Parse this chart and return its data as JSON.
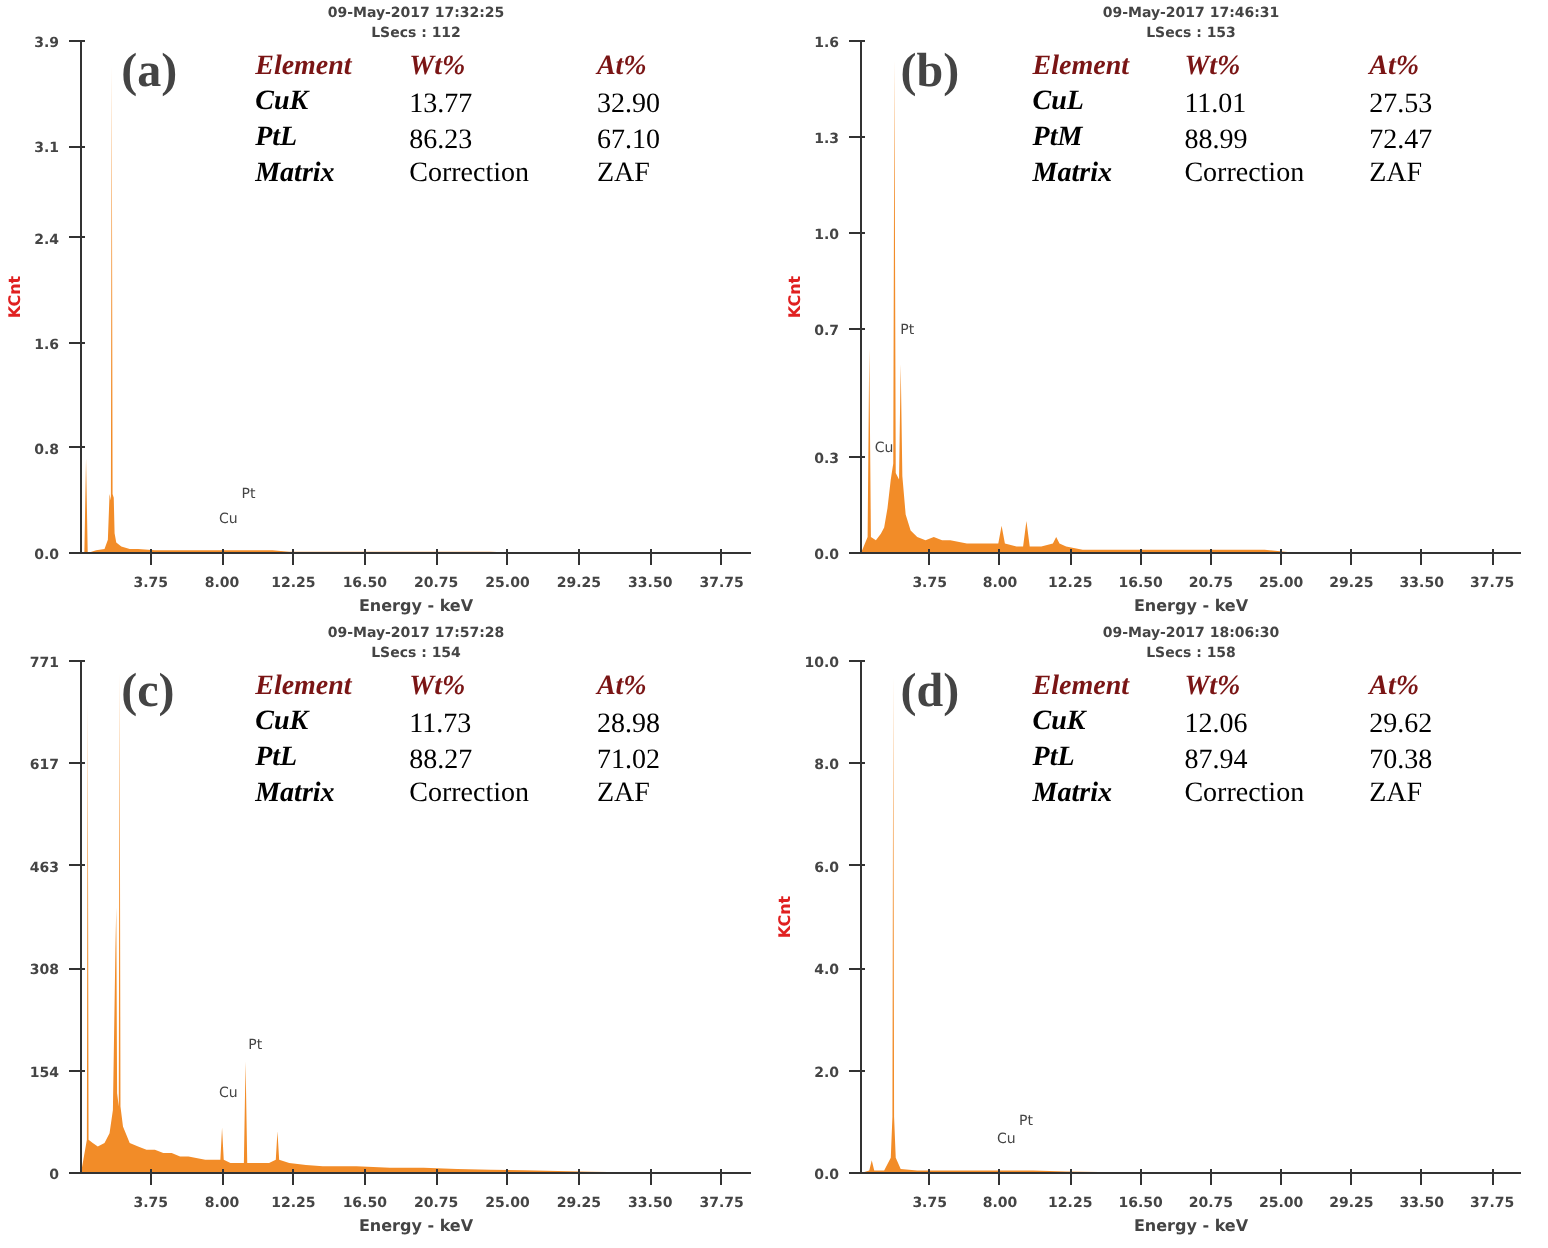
{
  "chart_data": [
    {
      "type": "area",
      "title": "(a)",
      "subtitle": "09-May-2017 17:32:25",
      "xlabel": "Energy - keV",
      "ylabel": "KCnt",
      "annotations": [
        "LSecs : 112",
        "Cu",
        "Pt",
        "Element",
        "Wt%",
        "At%",
        "CuK",
        "13.77",
        "32.90",
        "PtL",
        "86.23",
        "67.10",
        "Matrix",
        "Correction",
        "ZAF"
      ],
      "x": [
        -0.4,
        -0.2,
        -0.1,
        0.0,
        0.5,
        1.0,
        1.2,
        1.3,
        1.38,
        1.43,
        1.48,
        1.55,
        1.6,
        1.7,
        2.0,
        2.5,
        3,
        4,
        5,
        6,
        7,
        8,
        9,
        10,
        11,
        12,
        14,
        16,
        18,
        20,
        22,
        24,
        26,
        28,
        30,
        32,
        34,
        36,
        38,
        39.5
      ],
      "series": [
        {
          "color": "#f28c28",
          "values": [
            0,
            0,
            0.72,
            0,
            0.02,
            0.03,
            0.1,
            0.45,
            0.4,
            3.71,
            0.45,
            0.42,
            0.15,
            0.08,
            0.05,
            0.03,
            0.03,
            0.02,
            0.02,
            0.02,
            0.02,
            0.02,
            0.02,
            0.02,
            0.02,
            0.01,
            0.01,
            0.01,
            0.01,
            0.01,
            0.01,
            0.01,
            0,
            0,
            0,
            0,
            0,
            0,
            0,
            0
          ]
        }
      ],
      "xlim": [
        -0.4,
        39.5
      ],
      "xticks": [
        3.75,
        {
          "value": 8,
          "label": "8.00"
        },
        12.25,
        {
          "value": 16.5,
          "label": "16.50"
        },
        20.75,
        {
          "value": 25,
          "label": "25.00"
        },
        29.25,
        {
          "value": 33.5,
          "label": "33.50"
        },
        37.75
      ],
      "ylim": [
        0,
        3.9
      ],
      "yticks": [
        {
          "value": 0,
          "label": "0.0"
        },
        0.8,
        1.6,
        2.4,
        3.1,
        3.9
      ]
    },
    {
      "type": "area",
      "title": "(b)",
      "subtitle": "09-May-2017 17:46:31",
      "xlabel": "Energy - keV",
      "ylabel": "KCnt",
      "annotations": [
        "LSecs : 153",
        "Cu",
        "Pt",
        "Element",
        "Wt%",
        "At%",
        "CuL",
        "11.01",
        "27.53",
        "PtM",
        "88.99",
        "72.47",
        "Matrix",
        "Correction",
        "ZAF"
      ],
      "x": [
        -0.4,
        0.0,
        0.1,
        0.2,
        0.5,
        0.8,
        1.0,
        1.2,
        1.4,
        1.55,
        1.62,
        1.7,
        1.9,
        2.0,
        2.1,
        2.3,
        2.6,
        3,
        3.5,
        4,
        4.5,
        5,
        6,
        7,
        7.9,
        8.1,
        8.3,
        9,
        9.4,
        9.6,
        9.8,
        10.5,
        11.2,
        11.4,
        11.6,
        12,
        13,
        14,
        16,
        18,
        20,
        22,
        24,
        26,
        28,
        30,
        32,
        34,
        36,
        38,
        39.5
      ],
      "series": [
        {
          "color": "#f28c28",
          "values": [
            0,
            0.05,
            0.64,
            0.05,
            0.04,
            0.06,
            0.08,
            0.14,
            0.23,
            0.28,
            1.54,
            0.25,
            0.23,
            0.59,
            0.24,
            0.12,
            0.07,
            0.05,
            0.04,
            0.05,
            0.04,
            0.04,
            0.03,
            0.03,
            0.03,
            0.085,
            0.03,
            0.02,
            0.02,
            0.1,
            0.02,
            0.02,
            0.03,
            0.05,
            0.03,
            0.02,
            0.01,
            0.01,
            0.01,
            0.01,
            0.01,
            0.01,
            0.01,
            0,
            0,
            0,
            0,
            0,
            0,
            0,
            0
          ]
        }
      ],
      "xlim": [
        -0.4,
        39.5
      ],
      "xticks": [
        3.75,
        {
          "value": 8,
          "label": "8.00"
        },
        12.25,
        {
          "value": 16.5,
          "label": "16.50"
        },
        20.75,
        {
          "value": 25,
          "label": "25.00"
        },
        29.25,
        {
          "value": 33.5,
          "label": "33.50"
        },
        37.75
      ],
      "ylim": [
        0,
        1.6
      ],
      "yticks": [
        {
          "value": 0,
          "label": "0.0"
        },
        0.3,
        0.7,
        {
          "value": 1,
          "label": "1.0"
        },
        1.3,
        1.6
      ]
    },
    {
      "type": "area",
      "title": "(c)",
      "subtitle": "09-May-2017 17:57:28",
      "xlabel": "Energy - keV",
      "annotations": [
        "LSecs : 154",
        "Cu",
        "Pt",
        "Element",
        "Wt%",
        "At%",
        "CuK",
        "11.73",
        "28.98",
        "PtL",
        "88.27",
        "71.02",
        "Matrix",
        "Correction",
        "ZAF"
      ],
      "x": [
        -0.4,
        -0.05,
        0.0,
        0.05,
        0.3,
        0.6,
        1.0,
        1.3,
        1.5,
        1.65,
        1.7,
        1.75,
        1.85,
        1.9,
        1.95,
        2.1,
        2.5,
        3,
        3.5,
        4,
        4.5,
        5,
        5.5,
        6,
        7,
        7.9,
        8.0,
        8.1,
        8.5,
        9.3,
        9.4,
        9.5,
        10,
        10.8,
        11.2,
        11.3,
        11.4,
        12,
        13,
        14,
        16,
        18,
        20,
        22,
        24,
        26,
        28,
        30,
        32,
        34,
        36,
        38,
        39.5
      ],
      "series": [
        {
          "color": "#f28c28",
          "values": [
            0,
            50,
            711,
            50,
            45,
            40,
            45,
            60,
            95,
            337,
            400,
            120,
            100,
            753,
            100,
            70,
            45,
            40,
            35,
            35,
            30,
            30,
            25,
            25,
            20,
            20,
            68,
            20,
            15,
            15,
            168,
            15,
            15,
            15,
            20,
            63,
            20,
            15,
            12,
            10,
            10,
            8,
            8,
            6,
            5,
            4,
            3,
            2,
            1,
            0,
            0,
            0,
            0
          ]
        }
      ],
      "xlim": [
        -0.4,
        39.5
      ],
      "xticks": [
        3.75,
        {
          "value": 8,
          "label": "8.00"
        },
        12.25,
        {
          "value": 16.5,
          "label": "16.50"
        },
        20.75,
        {
          "value": 25,
          "label": "25.00"
        },
        29.25,
        {
          "value": 33.5,
          "label": "33.50"
        },
        37.75
      ],
      "ylim": [
        0,
        771
      ],
      "yticks": [
        0,
        154,
        308,
        463,
        617,
        771
      ]
    },
    {
      "type": "area",
      "title": "(d)",
      "subtitle": "09-May-2017 18:06:30",
      "xlabel": "Energy - keV",
      "ylabel": "KCnt",
      "annotations": [
        "LSecs : 158",
        "Cu",
        "Pt",
        "Element",
        "Wt%",
        "At%",
        "CuK",
        "12.06",
        "29.62",
        "PtL",
        "87.94",
        "70.38",
        "Matrix",
        "Correction",
        "ZAF"
      ],
      "x": [
        -0.4,
        0.1,
        0.25,
        0.4,
        1.0,
        1.4,
        1.5,
        1.55,
        1.6,
        1.7,
        2.0,
        3,
        4,
        6,
        8,
        10,
        12,
        14,
        16,
        18,
        20,
        25,
        30,
        35,
        39.5
      ],
      "series": [
        {
          "color": "#f28c28",
          "values": [
            0,
            0.05,
            0.25,
            0.05,
            0.05,
            0.3,
            1.1,
            9.69,
            1.1,
            0.3,
            0.08,
            0.05,
            0.05,
            0.05,
            0.05,
            0.05,
            0.03,
            0.02,
            0.02,
            0.01,
            0.01,
            0,
            0,
            0,
            0
          ]
        }
      ],
      "xlim": [
        -0.4,
        39.5
      ],
      "xticks": [
        3.75,
        {
          "value": 8,
          "label": "8.00"
        },
        12.25,
        {
          "value": 16.5,
          "label": "16.50"
        },
        20.75,
        {
          "value": 25,
          "label": "25.00"
        },
        29.25,
        {
          "value": 33.5,
          "label": "33.50"
        },
        37.75
      ],
      "ylim": [
        0,
        10
      ],
      "yticks": [
        {
          "value": 0,
          "label": "0.0"
        },
        {
          "value": 2,
          "label": "2.0"
        },
        {
          "value": 4,
          "label": "4.0"
        },
        {
          "value": 6,
          "label": "6.0"
        },
        {
          "value": 8,
          "label": "8.0"
        },
        {
          "value": 10,
          "label": "10.0"
        }
      ]
    }
  ]
}
